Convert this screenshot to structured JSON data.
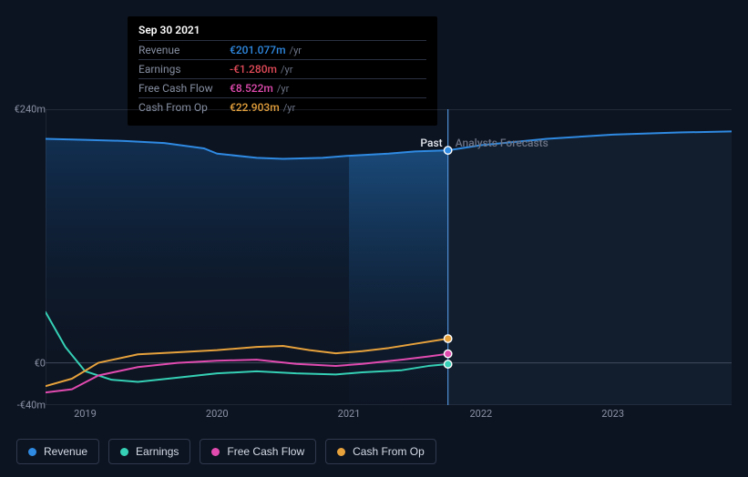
{
  "tooltip": {
    "date": "Sep 30 2021",
    "rows": [
      {
        "label": "Revenue",
        "value": "€201.077m",
        "unit": "/yr",
        "color": "#2f8ae2"
      },
      {
        "label": "Earnings",
        "value": "-€1.280m",
        "unit": "/yr",
        "color": "#e24b59"
      },
      {
        "label": "Free Cash Flow",
        "value": "€8.522m",
        "unit": "/yr",
        "color": "#e14bb0"
      },
      {
        "label": "Cash From Op",
        "value": "€22.903m",
        "unit": "/yr",
        "color": "#e7a23c"
      }
    ]
  },
  "chart": {
    "type": "line-area",
    "background_color": "#0d1421",
    "grid_color": "#5f6a80",
    "ylim": [
      -40,
      240
    ],
    "yticks": [
      {
        "v": 240,
        "label": "€240m"
      },
      {
        "v": 0,
        "label": "€0"
      },
      {
        "v": -40,
        "label": "-€40m"
      }
    ],
    "x_start": 2018.7,
    "x_end": 2023.9,
    "cursor_x": 2021.75,
    "past_area_gradient": {
      "from": "#123256",
      "to": "#0d1421"
    },
    "past_highlight_gradient": {
      "from": "#1a4a7a",
      "to": "#0d1c30"
    },
    "xticks": [
      {
        "v": 2019,
        "label": "2019"
      },
      {
        "v": 2020,
        "label": "2020"
      },
      {
        "v": 2021,
        "label": "2021"
      },
      {
        "v": 2022,
        "label": "2022"
      },
      {
        "v": 2023,
        "label": "2023"
      }
    ],
    "sections": {
      "past": "Past",
      "future": "Analysts Forecasts"
    },
    "series": [
      {
        "name": "Revenue",
        "color": "#2f8ae2",
        "area": true,
        "stroke_width": 2,
        "points": [
          [
            2018.7,
            212
          ],
          [
            2019.0,
            211
          ],
          [
            2019.3,
            210
          ],
          [
            2019.6,
            208
          ],
          [
            2019.9,
            203
          ],
          [
            2020.0,
            198
          ],
          [
            2020.3,
            194
          ],
          [
            2020.5,
            193
          ],
          [
            2020.8,
            194
          ],
          [
            2021.0,
            196
          ],
          [
            2021.3,
            198
          ],
          [
            2021.5,
            200
          ],
          [
            2021.75,
            201.077
          ],
          [
            2022.0,
            206
          ],
          [
            2022.5,
            212
          ],
          [
            2023.0,
            216
          ],
          [
            2023.5,
            218
          ],
          [
            2023.9,
            219
          ]
        ],
        "markers_at": [
          2021.75
        ]
      },
      {
        "name": "Earnings",
        "color": "#35d0b5",
        "stroke_width": 2,
        "points": [
          [
            2018.7,
            48
          ],
          [
            2018.85,
            15
          ],
          [
            2019.0,
            -8
          ],
          [
            2019.2,
            -16
          ],
          [
            2019.4,
            -18
          ],
          [
            2019.7,
            -14
          ],
          [
            2020.0,
            -10
          ],
          [
            2020.3,
            -8
          ],
          [
            2020.6,
            -10
          ],
          [
            2020.9,
            -11
          ],
          [
            2021.1,
            -9
          ],
          [
            2021.4,
            -7
          ],
          [
            2021.6,
            -3
          ],
          [
            2021.75,
            -1.28
          ]
        ],
        "markers_at": [
          2021.75
        ]
      },
      {
        "name": "Free Cash Flow",
        "color": "#e14bb0",
        "stroke_width": 2,
        "points": [
          [
            2018.7,
            -28
          ],
          [
            2018.9,
            -25
          ],
          [
            2019.1,
            -12
          ],
          [
            2019.4,
            -4
          ],
          [
            2019.7,
            0
          ],
          [
            2020.0,
            2
          ],
          [
            2020.3,
            3
          ],
          [
            2020.6,
            -1
          ],
          [
            2020.9,
            -3
          ],
          [
            2021.1,
            -1
          ],
          [
            2021.4,
            3
          ],
          [
            2021.6,
            6
          ],
          [
            2021.75,
            8.522
          ]
        ],
        "markers_at": [
          2021.75
        ]
      },
      {
        "name": "Cash From Op",
        "color": "#e7a23c",
        "stroke_width": 2,
        "points": [
          [
            2018.7,
            -22
          ],
          [
            2018.9,
            -15
          ],
          [
            2019.1,
            0
          ],
          [
            2019.4,
            8
          ],
          [
            2019.7,
            10
          ],
          [
            2020.0,
            12
          ],
          [
            2020.3,
            15
          ],
          [
            2020.5,
            16
          ],
          [
            2020.7,
            12
          ],
          [
            2020.9,
            9
          ],
          [
            2021.1,
            11
          ],
          [
            2021.3,
            14
          ],
          [
            2021.5,
            18
          ],
          [
            2021.75,
            22.903
          ]
        ],
        "markers_at": [
          2021.75
        ]
      }
    ]
  },
  "legend": [
    {
      "label": "Revenue",
      "color": "#2f8ae2"
    },
    {
      "label": "Earnings",
      "color": "#35d0b5"
    },
    {
      "label": "Free Cash Flow",
      "color": "#e14bb0"
    },
    {
      "label": "Cash From Op",
      "color": "#e7a23c"
    }
  ]
}
